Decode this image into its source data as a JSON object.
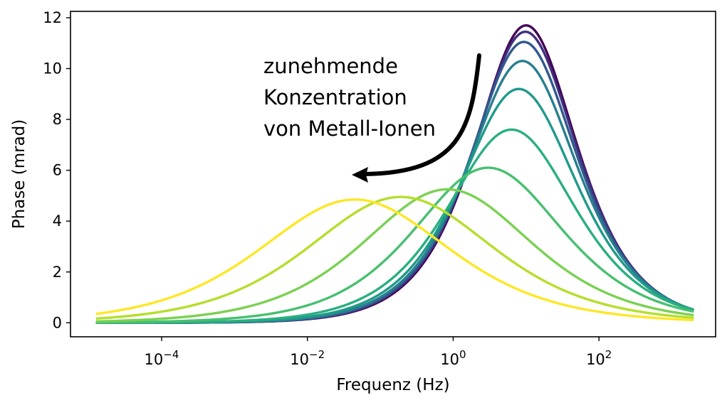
{
  "chart_data": {
    "type": "line",
    "title": "",
    "xlabel": "Frequenz (Hz)",
    "ylabel": "Phase (mrad)",
    "xscale": "log",
    "xlim_log10": [
      -5.25,
      3.6
    ],
    "ylim": [
      -0.55,
      12.25
    ],
    "xticks": [
      {
        "exp": -4,
        "base": "10",
        "sup": "−4"
      },
      {
        "exp": -2,
        "base": "10",
        "sup": "−2"
      },
      {
        "exp": 0,
        "base": "10",
        "sup": "0"
      },
      {
        "exp": 2,
        "base": "10",
        "sup": "2"
      }
    ],
    "yticks": [
      0,
      2,
      4,
      6,
      8,
      10,
      12
    ],
    "x_range_log10": [
      -4.9,
      3.3
    ],
    "series_model": "Cole-Cole phase peak: peak phase (mrad), log10 peak frequency (Hz), exponent c",
    "series": [
      {
        "name": "c1",
        "color": "#440154",
        "peak": 11.7,
        "log_f_peak": 1.0,
        "c": 0.78
      },
      {
        "name": "c2",
        "color": "#3f2f7f",
        "peak": 11.45,
        "log_f_peak": 0.99,
        "c": 0.77
      },
      {
        "name": "c3",
        "color": "#31598d",
        "peak": 11.05,
        "log_f_peak": 0.97,
        "c": 0.76
      },
      {
        "name": "c4",
        "color": "#277f8e",
        "peak": 10.3,
        "log_f_peak": 0.95,
        "c": 0.74
      },
      {
        "name": "c5",
        "color": "#1f9a8a",
        "peak": 9.2,
        "log_f_peak": 0.9,
        "c": 0.71
      },
      {
        "name": "c6",
        "color": "#29af7f",
        "peak": 7.6,
        "log_f_peak": 0.8,
        "c": 0.66
      },
      {
        "name": "c7",
        "color": "#47c06f",
        "peak": 6.1,
        "log_f_peak": 0.48,
        "c": 0.58
      },
      {
        "name": "c8",
        "color": "#7ad151",
        "peak": 5.25,
        "log_f_peak": -0.08,
        "c": 0.52
      },
      {
        "name": "c9",
        "color": "#b5de2b",
        "peak": 4.95,
        "log_f_peak": -0.72,
        "c": 0.48
      },
      {
        "name": "c10",
        "color": "#fde725",
        "peak": 4.85,
        "log_f_peak": -1.35,
        "c": 0.47
      }
    ],
    "annotation": {
      "lines": [
        "zunehmende",
        "Konzentration",
        "von Metall-Ionen"
      ]
    }
  }
}
